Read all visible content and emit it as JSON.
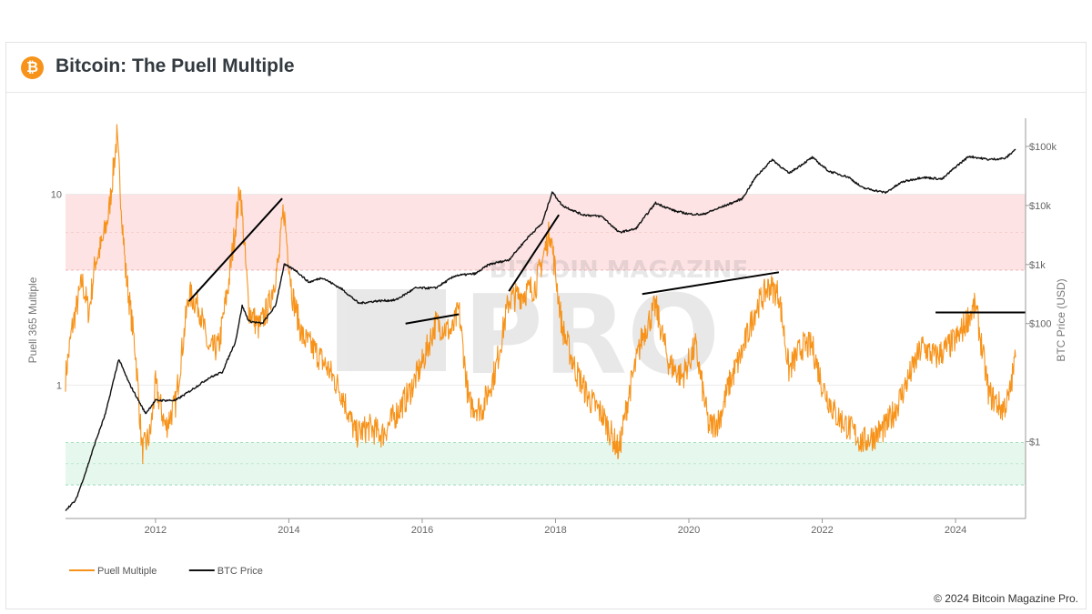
{
  "header": {
    "title": "Bitcoin: The Puell Multiple",
    "logo_icon": "bitcoin-icon",
    "logo_glyph": "₿"
  },
  "footer": {
    "copyright": "© 2024 Bitcoin Magazine Pro."
  },
  "watermark": {
    "line1": "BITCOIN MAGAZINE",
    "line2": "PRO"
  },
  "colors": {
    "puell": "#f7931a",
    "price": "#111111",
    "red_zone": "#fde3e4",
    "green_zone": "#e6f8ee",
    "trendline": "#000000"
  },
  "chart_data": {
    "type": "line",
    "title": "Bitcoin: The Puell Multiple",
    "ylabel_left": "Puell 365 Multiple",
    "ylabel_right": "BTC Price (USD)",
    "left_scale": "log",
    "right_scale": "log",
    "x_range": [
      2010.65,
      2025.05
    ],
    "x_ticks": [
      "2012",
      "2014",
      "2016",
      "2018",
      "2020",
      "2022",
      "2024"
    ],
    "left_ticks": [
      "10",
      "1"
    ],
    "right_ticks": [
      "$100k",
      "$10k",
      "$1k",
      "$100",
      "$1"
    ],
    "left_range": [
      0.2,
      25
    ],
    "right_range": [
      0.05,
      300000
    ],
    "zones": [
      {
        "name": "red",
        "from": 4,
        "to": 10
      },
      {
        "name": "green",
        "from": 0.3,
        "to": 0.5
      }
    ],
    "series": [
      {
        "name": "Puell Multiple",
        "axis": "left",
        "x": [
          2010.65,
          2010.75,
          2010.9,
          2011.0,
          2011.1,
          2011.2,
          2011.3,
          2011.42,
          2011.55,
          2011.7,
          2011.8,
          2011.92,
          2012.0,
          2012.15,
          2012.3,
          2012.5,
          2012.65,
          2012.8,
          2012.95,
          2013.1,
          2013.27,
          2013.4,
          2013.55,
          2013.7,
          2013.85,
          2013.92,
          2014.05,
          2014.2,
          2014.4,
          2014.6,
          2014.8,
          2015.0,
          2015.2,
          2015.4,
          2015.6,
          2015.8,
          2016.0,
          2016.2,
          2016.45,
          2016.55,
          2016.7,
          2016.9,
          2017.1,
          2017.3,
          2017.5,
          2017.7,
          2017.92,
          2018.1,
          2018.3,
          2018.5,
          2018.7,
          2018.95,
          2019.1,
          2019.3,
          2019.5,
          2019.7,
          2019.9,
          2020.1,
          2020.3,
          2020.45,
          2020.6,
          2020.8,
          2021.0,
          2021.2,
          2021.35,
          2021.5,
          2021.7,
          2021.85,
          2022.0,
          2022.2,
          2022.4,
          2022.6,
          2022.8,
          2022.95,
          2023.1,
          2023.3,
          2023.5,
          2023.7,
          2023.9,
          2024.05,
          2024.2,
          2024.3,
          2024.5,
          2024.7,
          2024.8,
          2024.9
        ],
        "values": [
          1.1,
          2.0,
          3.5,
          2.4,
          4.5,
          5.5,
          8.0,
          20.0,
          4.0,
          1.5,
          0.45,
          0.55,
          1.0,
          0.6,
          0.8,
          3.0,
          2.6,
          1.5,
          1.6,
          3.5,
          11.0,
          2.5,
          2.0,
          2.6,
          4.5,
          8.5,
          3.0,
          1.8,
          1.5,
          1.2,
          0.9,
          0.55,
          0.6,
          0.55,
          0.7,
          0.9,
          1.3,
          2.1,
          1.9,
          2.5,
          0.8,
          0.75,
          1.2,
          2.8,
          3.0,
          3.3,
          6.5,
          2.0,
          1.2,
          0.85,
          0.7,
          0.45,
          0.9,
          1.8,
          2.6,
          1.3,
          1.1,
          1.6,
          0.6,
          0.65,
          1.0,
          1.5,
          2.5,
          3.3,
          3.0,
          1.2,
          1.6,
          1.6,
          1.0,
          0.7,
          0.6,
          0.5,
          0.55,
          0.6,
          0.75,
          1.1,
          1.6,
          1.4,
          1.6,
          1.8,
          2.3,
          2.6,
          0.9,
          0.75,
          0.85,
          1.4
        ]
      },
      {
        "name": "BTC Price",
        "axis": "right",
        "x": [
          2010.65,
          2010.8,
          2010.95,
          2011.1,
          2011.25,
          2011.4,
          2011.45,
          2011.6,
          2011.85,
          2012.0,
          2012.3,
          2012.5,
          2012.8,
          2013.0,
          2013.2,
          2013.3,
          2013.4,
          2013.6,
          2013.8,
          2013.93,
          2014.1,
          2014.3,
          2014.5,
          2014.8,
          2015.05,
          2015.3,
          2015.6,
          2015.9,
          2016.2,
          2016.5,
          2016.8,
          2017.0,
          2017.3,
          2017.6,
          2017.8,
          2017.95,
          2018.1,
          2018.4,
          2018.7,
          2018.95,
          2019.2,
          2019.5,
          2019.8,
          2020.0,
          2020.2,
          2020.5,
          2020.8,
          2021.0,
          2021.25,
          2021.5,
          2021.85,
          2022.1,
          2022.4,
          2022.6,
          2022.95,
          2023.2,
          2023.5,
          2023.8,
          2024.0,
          2024.2,
          2024.5,
          2024.75,
          2024.9
        ],
        "values": [
          0.07,
          0.1,
          0.3,
          1.0,
          3.0,
          15.0,
          25.0,
          10.0,
          3.0,
          5.0,
          5.0,
          7.0,
          12.0,
          15.0,
          50.0,
          200.0,
          110.0,
          100.0,
          200.0,
          1000.0,
          800.0,
          500.0,
          600.0,
          380.0,
          220.0,
          240.0,
          250.0,
          400.0,
          400.0,
          650.0,
          700.0,
          1000.0,
          1200.0,
          3000.0,
          5000.0,
          17000.0,
          10000.0,
          7000.0,
          6500.0,
          3500.0,
          4000.0,
          11000.0,
          8000.0,
          7200.0,
          7000.0,
          9500.0,
          13000.0,
          30000.0,
          60000.0,
          35000.0,
          65000.0,
          38000.0,
          30000.0,
          20000.0,
          16500.0,
          25000.0,
          30000.0,
          28000.0,
          45000.0,
          68000.0,
          60000.0,
          63000.0,
          90000.0
        ]
      }
    ],
    "trendlines_note": "Hand-drawn black trendlines annotate rising cycle peaks."
  },
  "legend": [
    {
      "label": "Puell Multiple",
      "color": "#f7931a"
    },
    {
      "label": "BTC Price",
      "color": "#111111"
    }
  ]
}
